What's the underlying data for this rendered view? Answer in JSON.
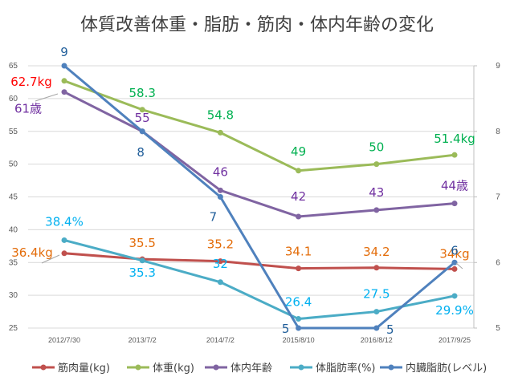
{
  "chart_data": {
    "type": "line",
    "title": "体質改善体重・脂肪・筋肉・体内年齢の変化",
    "categories": [
      "2012/7/30",
      "2013/7/2",
      "2014/7/2",
      "2015/8/10",
      "2016/8/12",
      "2017/9/25"
    ],
    "y_left": {
      "min": 25,
      "max": 65,
      "ticks": [
        25,
        30,
        35,
        40,
        45,
        50,
        55,
        60,
        65
      ]
    },
    "y_right": {
      "min": 5,
      "max": 9,
      "ticks": [
        5,
        6,
        7,
        8,
        9
      ]
    },
    "grid": "horizontal",
    "legend_position": "bottom",
    "series": [
      {
        "name": "筋肉量(kg)",
        "axis": "left",
        "color": "#c0504d",
        "label_color": "#e36c09",
        "values": [
          36.4,
          35.5,
          35.2,
          34.1,
          34.2,
          34.0
        ],
        "labels": [
          "36.4kg",
          "35.5",
          "35.2",
          "34.1",
          "34.2",
          "34kg"
        ]
      },
      {
        "name": "体重(kg)",
        "axis": "left",
        "color": "#9bbb59",
        "label_color": "#00b050",
        "values": [
          62.7,
          58.3,
          54.8,
          49,
          50,
          51.4
        ],
        "labels": [
          "62.7kg",
          "58.3",
          "54.8",
          "49",
          "50",
          "51.4kg"
        ],
        "first_label_color": "#ff0000"
      },
      {
        "name": "体内年齢",
        "axis": "left",
        "color": "#8064a2",
        "label_color": "#7030a0",
        "values": [
          61,
          55,
          46,
          42,
          43,
          44
        ],
        "labels": [
          "61歳",
          "55",
          "46",
          "42",
          "43",
          "44歳"
        ]
      },
      {
        "name": "体脂肪率(%)",
        "axis": "left",
        "color": "#4bacc6",
        "label_color": "#00b0f0",
        "values": [
          38.4,
          35.3,
          32,
          26.4,
          27.5,
          29.9
        ],
        "labels": [
          "38.4%",
          "35.3",
          "32",
          "26.4",
          "27.5",
          "29.9%"
        ]
      },
      {
        "name": "内臓脂肪(レベル)",
        "axis": "right",
        "color": "#4f81bd",
        "label_color": "#1f5d99",
        "values": [
          9,
          8,
          7,
          5,
          5,
          6
        ],
        "labels": [
          "9",
          "8",
          "7",
          "5",
          "5",
          "6"
        ]
      }
    ]
  }
}
